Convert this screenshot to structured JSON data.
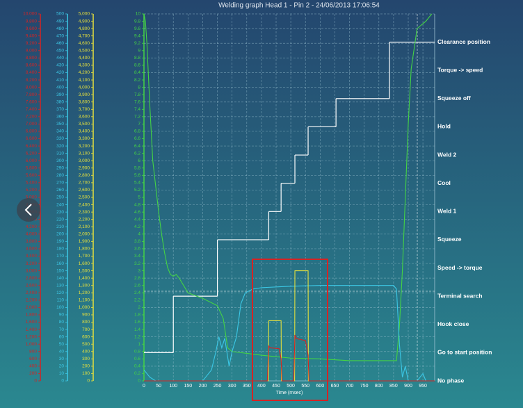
{
  "chart_data": {
    "type": "line",
    "title": "Welding graph Head 1 - Pin 2 - 24/06/2013 17:06:54",
    "x_label": "Time (msec)",
    "xlim": [
      0,
      990
    ],
    "xticks": [
      0,
      50,
      100,
      150,
      200,
      250,
      300,
      350,
      400,
      450,
      500,
      550,
      600,
      650,
      700,
      750,
      800,
      850,
      900,
      950
    ],
    "grid": true,
    "axes": [
      {
        "color": "#d42424",
        "lim": [
          0,
          10000
        ],
        "ticks": [
          0,
          200,
          400,
          600,
          800,
          {
            "value": 1000,
            "label": "1,000"
          },
          {
            "value": 1200,
            "label": "1,200"
          },
          {
            "value": 1400,
            "label": "1,400"
          },
          {
            "value": 1600,
            "label": "1,600"
          },
          {
            "value": 1800,
            "label": "1,800"
          },
          {
            "value": 2000,
            "label": "2,000"
          },
          {
            "value": 2200,
            "label": "2,200"
          },
          {
            "value": 2400,
            "label": "2,400"
          },
          {
            "value": 2600,
            "label": "2,600"
          },
          {
            "value": 2800,
            "label": "2,800"
          },
          {
            "value": 3000,
            "label": "3,000"
          },
          {
            "value": 3200,
            "label": "3,200"
          },
          {
            "value": 3400,
            "label": "3,400"
          },
          {
            "value": 3600,
            "label": "3,600"
          },
          {
            "value": 3800,
            "label": "3,800"
          },
          {
            "value": 4000,
            "label": "4,000"
          },
          {
            "value": 4200,
            "label": "4,200"
          },
          {
            "value": 4400,
            "label": "4,400"
          },
          {
            "value": 4600,
            "label": "4,600"
          },
          {
            "value": 4800,
            "label": "4,800"
          },
          {
            "value": 5000,
            "label": "5,000"
          },
          {
            "value": 5200,
            "label": "5,200"
          },
          {
            "value": 5400,
            "label": "5,400"
          },
          {
            "value": 5600,
            "label": "5,600"
          },
          {
            "value": 5800,
            "label": "5,800"
          },
          {
            "value": 6000,
            "label": "6,000"
          },
          {
            "value": 6200,
            "label": "6,200"
          },
          {
            "value": 6400,
            "label": "6,400"
          },
          {
            "value": 6600,
            "label": "6,600"
          },
          {
            "value": 6800,
            "label": "6,800"
          },
          {
            "value": 7000,
            "label": "7,000"
          },
          {
            "value": 7200,
            "label": "7,200"
          },
          {
            "value": 7400,
            "label": "7,400"
          },
          {
            "value": 7600,
            "label": "7,600"
          },
          {
            "value": 7800,
            "label": "7,800"
          },
          {
            "value": 8000,
            "label": "8,000"
          },
          {
            "value": 8200,
            "label": "8,200"
          },
          {
            "value": 8400,
            "label": "8,400"
          },
          {
            "value": 8600,
            "label": "8,600"
          },
          {
            "value": 8800,
            "label": "8,800"
          },
          {
            "value": 9000,
            "label": "9,000"
          },
          {
            "value": 9200,
            "label": "9,200"
          },
          {
            "value": 9400,
            "label": "9,400"
          },
          {
            "value": 9600,
            "label": "9,600"
          },
          {
            "value": 9800,
            "label": "9,800"
          },
          {
            "value": 10000,
            "label": "10,000"
          }
        ]
      },
      {
        "color": "#3cc8e6",
        "lim": [
          0,
          500
        ],
        "ticks": [
          0,
          10,
          20,
          30,
          40,
          50,
          60,
          70,
          80,
          90,
          100,
          110,
          120,
          130,
          140,
          150,
          160,
          170,
          180,
          190,
          200,
          210,
          220,
          230,
          240,
          250,
          260,
          270,
          280,
          290,
          300,
          310,
          320,
          330,
          340,
          350,
          360,
          370,
          380,
          390,
          400,
          410,
          420,
          430,
          440,
          450,
          460,
          470,
          480,
          490,
          500
        ]
      },
      {
        "color": "#e6e03c",
        "lim": [
          0,
          5000
        ],
        "ticks": [
          0,
          100,
          200,
          300,
          400,
          500,
          600,
          700,
          800,
          900,
          {
            "value": 1000,
            "label": "1,000"
          },
          {
            "value": 1100,
            "label": "1,100"
          },
          {
            "value": 1200,
            "label": "1,200"
          },
          {
            "value": 1300,
            "label": "1,300"
          },
          {
            "value": 1400,
            "label": "1,400"
          },
          {
            "value": 1500,
            "label": "1,500"
          },
          {
            "value": 1600,
            "label": "1,600"
          },
          {
            "value": 1700,
            "label": "1,700"
          },
          {
            "value": 1800,
            "label": "1,800"
          },
          {
            "value": 1900,
            "label": "1,900"
          },
          {
            "value": 2000,
            "label": "2,000"
          },
          {
            "value": 2100,
            "label": "2,100"
          },
          {
            "value": 2200,
            "label": "2,200"
          },
          {
            "value": 2300,
            "label": "2,300"
          },
          {
            "value": 2400,
            "label": "2,400"
          },
          {
            "value": 2500,
            "label": "2,500"
          },
          {
            "value": 2600,
            "label": "2,600"
          },
          {
            "value": 2700,
            "label": "2,700"
          },
          {
            "value": 2800,
            "label": "2,800"
          },
          {
            "value": 2900,
            "label": "2,900"
          },
          {
            "value": 3000,
            "label": "3,000"
          },
          {
            "value": 3100,
            "label": "3,100"
          },
          {
            "value": 3200,
            "label": "3,200"
          },
          {
            "value": 3300,
            "label": "3,300"
          },
          {
            "value": 3400,
            "label": "3,400"
          },
          {
            "value": 3500,
            "label": "3,500"
          },
          {
            "value": 3600,
            "label": "3,600"
          },
          {
            "value": 3700,
            "label": "3,700"
          },
          {
            "value": 3800,
            "label": "3,800"
          },
          {
            "value": 3900,
            "label": "3,900"
          },
          {
            "value": 4000,
            "label": "4,000"
          },
          {
            "value": 4100,
            "label": "4,100"
          },
          {
            "value": 4200,
            "label": "4,200"
          },
          {
            "value": 4300,
            "label": "4,300"
          },
          {
            "value": 4400,
            "label": "4,400"
          },
          {
            "value": 4500,
            "label": "4,500"
          },
          {
            "value": 4600,
            "label": "4,600"
          },
          {
            "value": 4700,
            "label": "4,700"
          },
          {
            "value": 4800,
            "label": "4,800"
          },
          {
            "value": 4900,
            "label": "4,900"
          },
          {
            "value": 5000,
            "label": "5,000"
          }
        ]
      },
      {
        "color": "#44d444",
        "lim": [
          0,
          10
        ],
        "ticks": [
          0,
          0.2,
          0.4,
          0.6,
          0.8,
          1,
          1.2,
          1.4,
          1.6,
          1.8,
          2,
          2.2,
          2.4,
          2.6,
          2.8,
          3,
          3.2,
          3.4,
          3.6,
          3.8,
          4,
          4.2,
          4.4,
          4.6,
          4.8,
          5,
          5.2,
          5.4,
          5.6,
          5.8,
          6,
          6.2,
          6.4,
          6.6,
          6.8,
          7,
          7.2,
          7.4,
          7.6,
          7.8,
          8,
          8.2,
          8.4,
          8.6,
          8.8,
          9,
          9.2,
          9.4,
          9.6,
          9.8,
          10
        ]
      }
    ],
    "phase_lim": [
      0,
      13
    ],
    "phases": [
      "No phase",
      "Go to start position",
      "Hook close",
      "Terminal search",
      "Speed -> torque",
      "Squeeze",
      "Weld 1",
      "Cool",
      "Weld 2",
      "Hold",
      "Squeeze off",
      "Torque -> speed",
      "Clearance position"
    ],
    "phase_series": {
      "color": "#ffffff",
      "x": [
        0,
        100,
        250,
        425,
        467,
        514,
        559,
        654,
        836
      ],
      "values": [
        1,
        3,
        5,
        6,
        7,
        8,
        9,
        10,
        12
      ]
    },
    "series": [
      {
        "color": "#44d444",
        "axis": 3,
        "x": [
          0,
          5,
          10,
          20,
          30,
          40,
          50,
          60,
          70,
          80,
          90,
          100,
          110,
          120,
          150,
          200,
          250,
          270,
          285,
          300,
          400,
          500,
          600,
          700,
          800,
          860,
          870,
          880,
          890,
          900,
          910,
          930,
          960,
          980
        ],
        "values": [
          10,
          9.8,
          9.2,
          7.5,
          6,
          5.3,
          4.6,
          4,
          3.5,
          3.1,
          2.9,
          2.85,
          2.9,
          2.8,
          2.4,
          2.25,
          2.05,
          1.7,
          0.9,
          0.8,
          0.7,
          0.62,
          0.6,
          0.55,
          0.55,
          0.55,
          1.5,
          3,
          5,
          7,
          8.5,
          9.6,
          9.8,
          10
        ]
      },
      {
        "color": "#3cc8e6",
        "axis": 1,
        "x": [
          0,
          20,
          40,
          100,
          200,
          230,
          245,
          255,
          265,
          275,
          290,
          300,
          315,
          330,
          345,
          370,
          400,
          500,
          600,
          700,
          800,
          850,
          860,
          870,
          880,
          890,
          900,
          930,
          950,
          960
        ],
        "values": [
          15,
          5,
          0,
          0,
          0,
          15,
          40,
          60,
          45,
          58,
          20,
          40,
          60,
          105,
          120,
          125,
          127,
          129,
          130,
          130,
          130,
          130,
          125,
          50,
          5,
          20,
          0,
          0,
          10,
          0
        ]
      },
      {
        "color": "#e6e03c",
        "axis": 2,
        "x": [
          0,
          424,
          425,
          467,
          468,
          513,
          514,
          559,
          560,
          990
        ],
        "values": [
          0,
          0,
          820,
          820,
          0,
          0,
          1500,
          1500,
          0,
          0
        ]
      },
      {
        "color": "#d42424",
        "axis": 0,
        "x": [
          0,
          420,
          425,
          430,
          460,
          467,
          470,
          510,
          514,
          520,
          550,
          559,
          562,
          990
        ],
        "values": [
          0,
          0,
          950,
          900,
          880,
          600,
          0,
          0,
          1250,
          1150,
          1100,
          700,
          0,
          0
        ]
      }
    ]
  }
}
